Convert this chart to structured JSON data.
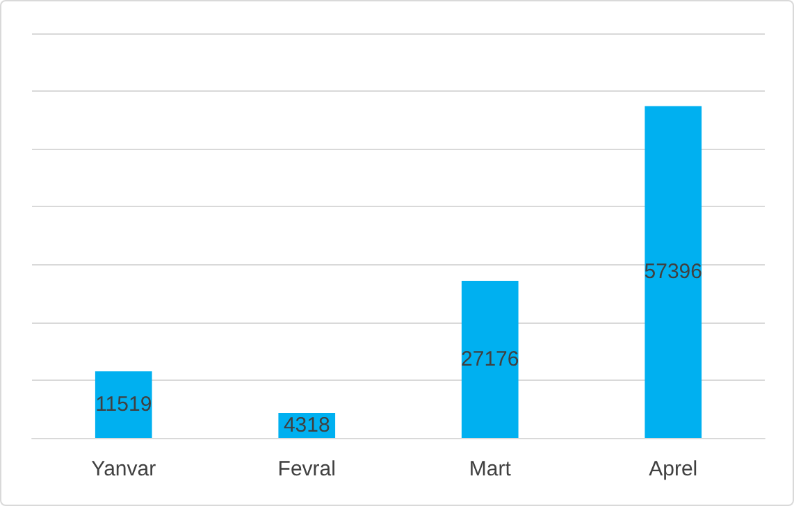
{
  "chart_data": {
    "type": "bar",
    "categories": [
      "Yanvar",
      "Fevral",
      "Mart",
      "Aprel"
    ],
    "values": [
      11519,
      4318,
      27176,
      57396
    ],
    "color": "#00b0f0",
    "data_labels": true,
    "grid": "y",
    "ylim": [
      0,
      70000
    ],
    "yticks": [
      {
        "value": 0,
        "label": null
      },
      {
        "value": 10000,
        "label": null
      },
      {
        "value": 20000,
        "label": null
      },
      {
        "value": 30000,
        "label": null
      },
      {
        "value": 40000,
        "label": null
      },
      {
        "value": 50000,
        "label": null
      },
      {
        "value": 60000,
        "label": null
      },
      {
        "value": 70000,
        "label": null
      }
    ]
  }
}
